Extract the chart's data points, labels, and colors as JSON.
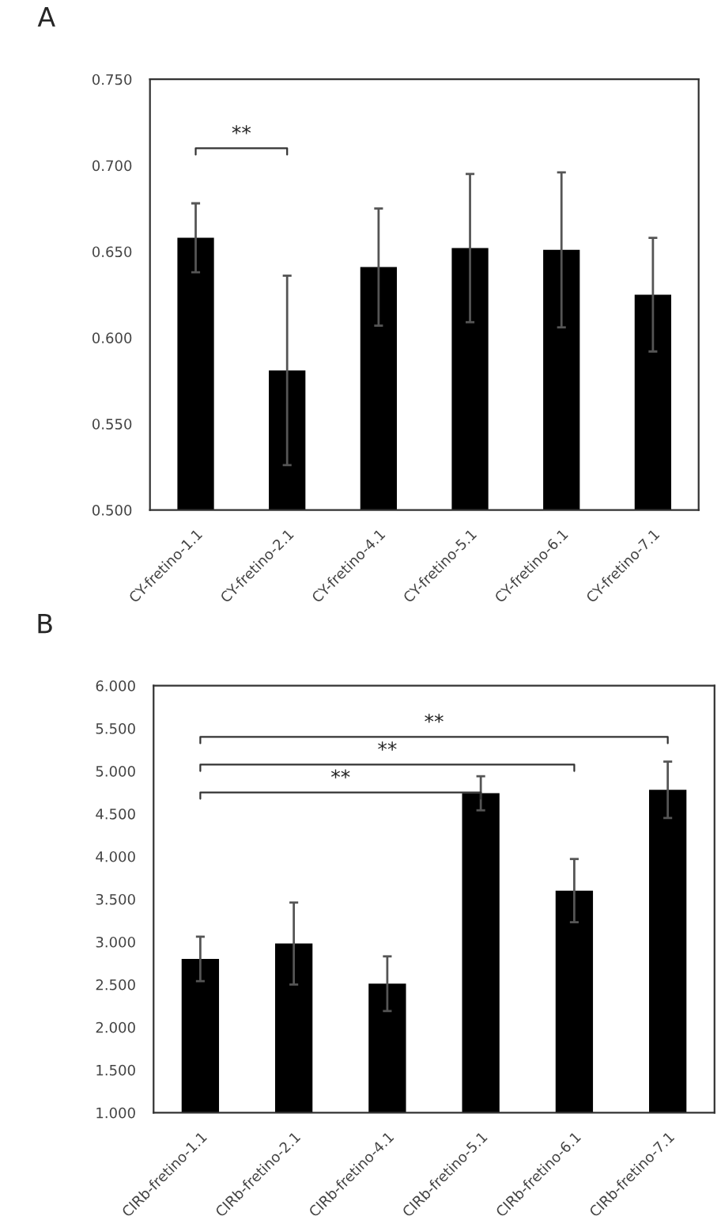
{
  "chart_data": [
    {
      "type": "bar",
      "title": "A",
      "categories": [
        "CY-fretino-1.1",
        "CY-fretino-2.1",
        "CY-fretino-4.1",
        "CY-fretino-5.1",
        "CY-fretino-6.1",
        "CY-fretino-7.1"
      ],
      "values": [
        0.658,
        0.581,
        0.641,
        0.652,
        0.651,
        0.625
      ],
      "errors": [
        0.02,
        0.055,
        0.034,
        0.043,
        0.045,
        0.033
      ],
      "color": "#000000",
      "ylim": [
        0.5,
        0.75
      ],
      "yticks": [
        {
          "value": 0.5,
          "label": "0.500"
        },
        {
          "value": 0.55,
          "label": "0.550"
        },
        {
          "value": 0.6,
          "label": "0.600"
        },
        {
          "value": 0.65,
          "label": "0.650"
        },
        {
          "value": 0.7,
          "label": "0.700"
        },
        {
          "value": 0.75,
          "label": "0.750"
        }
      ],
      "annotations": [
        "**"
      ]
    },
    {
      "type": "bar",
      "title": "B",
      "categories": [
        "CIRb-fretino-1.1",
        "CIRb-fretino-2.1",
        "CIRb-fretino-4.1",
        "CIRb-fretino-5.1",
        "CIRb-fretino-6.1",
        "CIRb-fretino-7.1"
      ],
      "values": [
        2.8,
        2.98,
        2.51,
        4.74,
        3.6,
        4.78
      ],
      "errors": [
        0.26,
        0.48,
        0.32,
        0.2,
        0.37,
        0.33
      ],
      "color": "#000000",
      "ylim": [
        1,
        6
      ],
      "yticks": [
        {
          "value": 1,
          "label": "1.000"
        },
        {
          "value": 1.5,
          "label": "1.500"
        },
        {
          "value": 2,
          "label": "2.000"
        },
        {
          "value": 2.5,
          "label": "2.500"
        },
        {
          "value": 3,
          "label": "3.000"
        },
        {
          "value": 3.5,
          "label": "3.500"
        },
        {
          "value": 4,
          "label": "4.000"
        },
        {
          "value": 4.5,
          "label": "4.500"
        },
        {
          "value": 5,
          "label": "5.000"
        },
        {
          "value": 5.5,
          "label": "5.500"
        },
        {
          "value": 6,
          "label": "6.000"
        }
      ],
      "annotations": [
        "**",
        "**",
        "**"
      ]
    }
  ]
}
